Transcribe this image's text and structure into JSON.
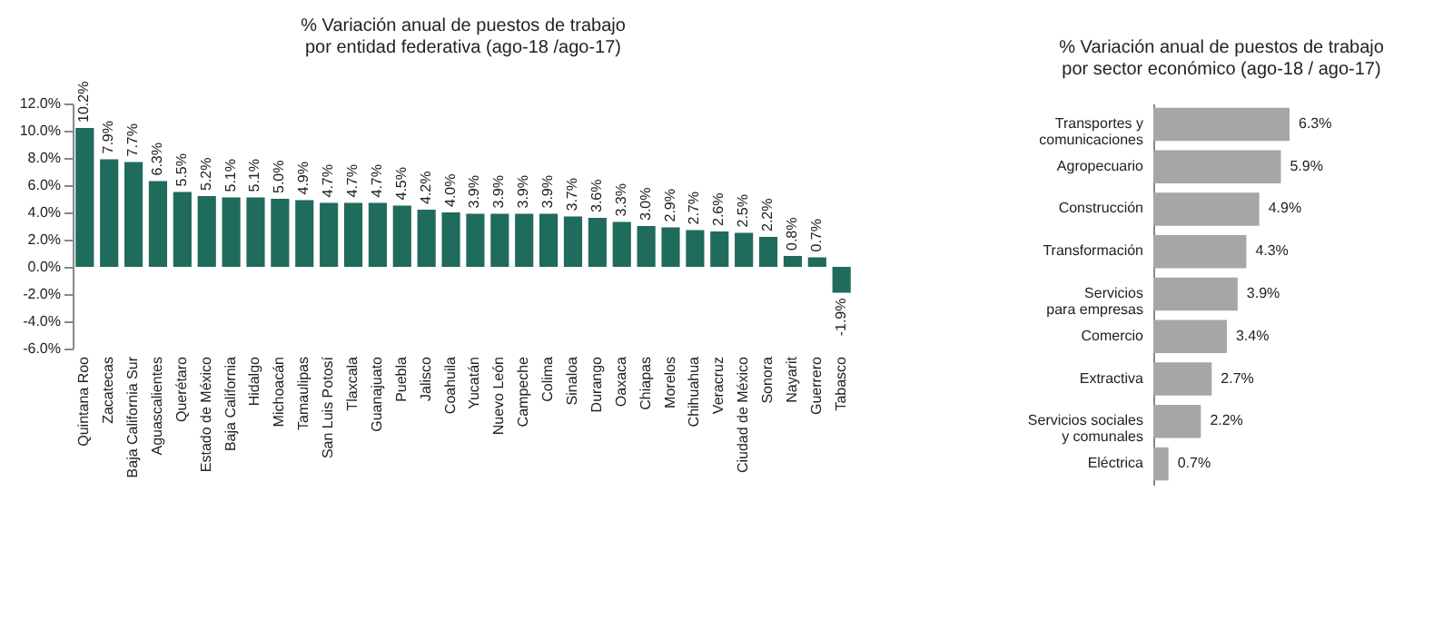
{
  "chart_data": [
    {
      "type": "bar",
      "title": "% Variación anual de puestos de trabajo\npor entidad federativa (ago-18 /ago-17)",
      "categories": [
        "Quintana Roo",
        "Zacatecas",
        "Baja California Sur",
        "Aguascalientes",
        "Querétaro",
        "Estado de México",
        "Baja California",
        "Hidalgo",
        "Michoacán",
        "Tamaulipas",
        "San Luis Potosí",
        "Tlaxcala",
        "Guanajuato",
        "Puebla",
        "Jalisco",
        "Coahuila",
        "Yucatán",
        "Nuevo León",
        "Campeche",
        "Colima",
        "Sinaloa",
        "Durango",
        "Oaxaca",
        "Chiapas",
        "Morelos",
        "Chihuahua",
        "Veracruz",
        "Ciudad de México",
        "Sonora",
        "Nayarit",
        "Guerrero",
        "Tabasco"
      ],
      "values": [
        10.2,
        7.9,
        7.7,
        6.3,
        5.5,
        5.2,
        5.1,
        5.1,
        5.0,
        4.9,
        4.7,
        4.7,
        4.7,
        4.5,
        4.2,
        4.0,
        3.9,
        3.9,
        3.9,
        3.9,
        3.7,
        3.6,
        3.3,
        3.0,
        2.9,
        2.7,
        2.6,
        2.5,
        2.2,
        0.8,
        0.7,
        -1.9
      ],
      "value_labels": [
        "10.2%",
        "7.9%",
        "7.7%",
        "6.3%",
        "5.5%",
        "5.2%",
        "5.1%",
        "5.1%",
        "5.0%",
        "4.9%",
        "4.7%",
        "4.7%",
        "4.7%",
        "4.5%",
        "4.2%",
        "4.0%",
        "3.9%",
        "3.9%",
        "3.9%",
        "3.9%",
        "3.7%",
        "3.6%",
        "3.3%",
        "3.0%",
        "2.9%",
        "2.7%",
        "2.6%",
        "2.5%",
        "2.2%",
        "0.8%",
        "0.7%",
        "-1.9%"
      ],
      "color": "#1f6b5c",
      "ylim": [
        -6,
        12
      ],
      "yticks": [
        {
          "value": -6,
          "label": "-6.0%"
        },
        {
          "value": -4,
          "label": "-4.0%"
        },
        {
          "value": -2,
          "label": "-2.0%"
        },
        {
          "value": 0,
          "label": "0.0%"
        },
        {
          "value": 2,
          "label": "2.0%"
        },
        {
          "value": 4,
          "label": "4.0%"
        },
        {
          "value": 6,
          "label": "6.0%"
        },
        {
          "value": 8,
          "label": "8.0%"
        },
        {
          "value": 10,
          "label": "10.0%"
        },
        {
          "value": 12,
          "label": "12.0%"
        }
      ],
      "grid": false
    },
    {
      "type": "bar",
      "orientation": "horizontal",
      "title": "% Variación anual de puestos de trabajo\npor sector económico (ago-18 / ago-17)",
      "categories": [
        "Transportes y comunicaciones",
        "Agropecuario",
        "Construcción",
        "Transformación",
        "Servicios para empresas",
        "Comercio",
        "Extractiva",
        "Servicios sociales y comunales",
        "Eléctrica"
      ],
      "values": [
        6.3,
        5.9,
        4.9,
        4.3,
        3.9,
        3.4,
        2.7,
        2.2,
        0.7
      ],
      "value_labels": [
        "6.3%",
        "5.9%",
        "4.9%",
        "4.3%",
        "3.9%",
        "3.4%",
        "2.7%",
        "2.2%",
        "0.7%"
      ],
      "color": "#a6a6a6",
      "grid": false
    }
  ]
}
